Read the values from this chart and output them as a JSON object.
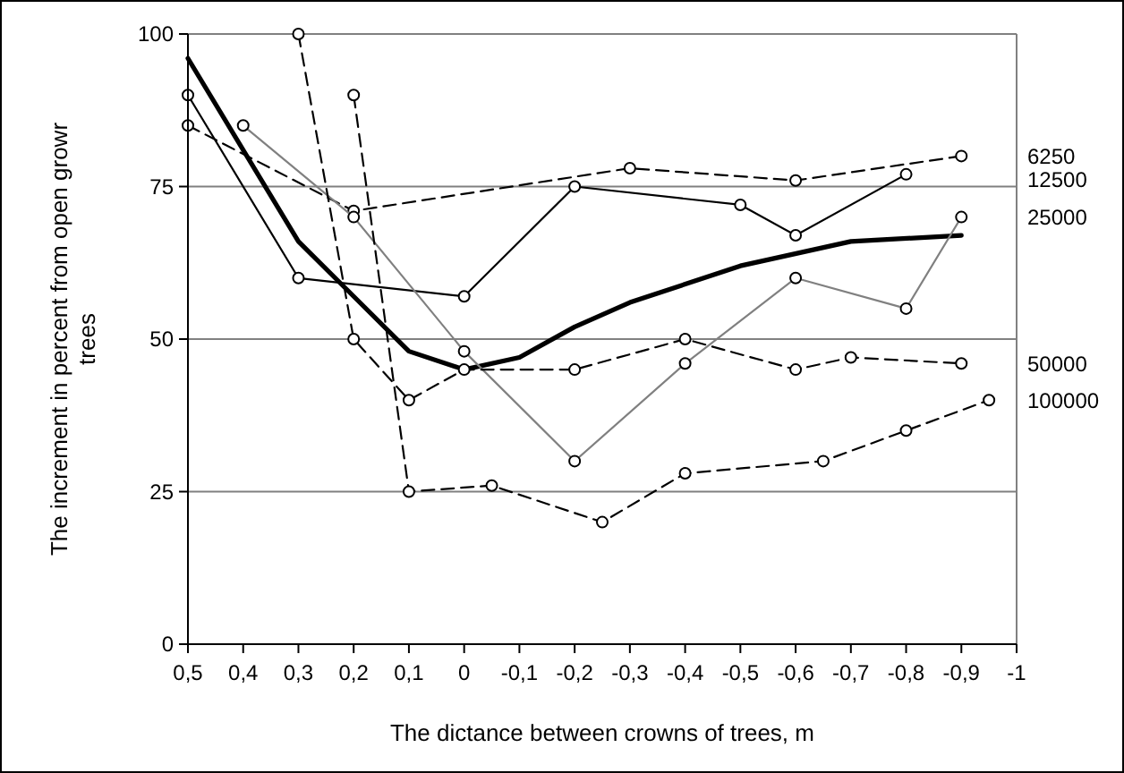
{
  "chart_data": {
    "type": "line",
    "xlabel": "The dictance between crowns of trees, m",
    "ylabel": "The increment in percent from open growr trees",
    "xlim": [
      0.5,
      -1
    ],
    "ylim": [
      0,
      100
    ],
    "xticks": [
      {
        "value": 0.5,
        "label": "0,5"
      },
      {
        "value": 0.4,
        "label": "0,4"
      },
      {
        "value": 0.3,
        "label": "0,3"
      },
      {
        "value": 0.2,
        "label": "0,2"
      },
      {
        "value": 0.1,
        "label": "0,1"
      },
      0,
      {
        "value": -0.1,
        "label": "-0,1"
      },
      {
        "value": -0.2,
        "label": "-0,2"
      },
      {
        "value": -0.3,
        "label": "-0,3"
      },
      {
        "value": -0.4,
        "label": "-0,4"
      },
      {
        "value": -0.5,
        "label": "-0,5"
      },
      {
        "value": -0.6,
        "label": "-0,6"
      },
      {
        "value": -0.7,
        "label": "-0,7"
      },
      {
        "value": -0.8,
        "label": "-0,8"
      },
      {
        "value": -0.9,
        "label": "-0,9"
      },
      -1
    ],
    "yticks": [
      0,
      25,
      50,
      75,
      100
    ],
    "grid": "y",
    "series": [
      {
        "name": "6250",
        "color": "#000000",
        "line_style": "dashed",
        "marker": "circle",
        "x": [
          0.5,
          0.2,
          -0.3,
          -0.6,
          -0.9
        ],
        "values": [
          85,
          71,
          78,
          76,
          80
        ]
      },
      {
        "name": "12500",
        "color": "#000000",
        "line_style": "solid",
        "marker": "circle",
        "x": [
          0.5,
          0.3,
          0,
          -0.2,
          -0.5,
          -0.6,
          -0.8
        ],
        "values": [
          90,
          60,
          57,
          75,
          72,
          67,
          77
        ]
      },
      {
        "color": "#000000",
        "line_style": "solid",
        "marker": "none",
        "x": [
          0.5,
          0.3,
          0.2,
          0.1,
          0,
          -0.1,
          -0.2,
          -0.3,
          -0.5,
          -0.7,
          -0.9
        ],
        "values": [
          96,
          66,
          57,
          48,
          45,
          47,
          52,
          56,
          62,
          66,
          67
        ]
      },
      {
        "name": "25000",
        "color": "#808080",
        "line_style": "solid",
        "marker": "circle",
        "x": [
          0.4,
          0.2,
          0,
          -0.2,
          -0.4,
          -0.6,
          -0.8,
          -0.9
        ],
        "values": [
          85,
          70,
          48,
          30,
          46,
          60,
          55,
          70
        ]
      },
      {
        "name": "50000",
        "color": "#000000",
        "line_style": "dashed",
        "marker": "circle",
        "x": [
          0.3,
          0.2,
          0.1,
          0,
          -0.2,
          -0.4,
          -0.6,
          -0.7,
          -0.9
        ],
        "values": [
          100,
          50,
          40,
          45,
          45,
          50,
          45,
          47,
          46
        ]
      },
      {
        "name": "100000",
        "color": "#000000",
        "line_style": "dashed",
        "marker": "circle",
        "x": [
          0.2,
          0.1,
          -0.05,
          -0.25,
          -0.4,
          -0.65,
          -0.8,
          -0.95
        ],
        "values": [
          90,
          25,
          26,
          20,
          28,
          30,
          35,
          40
        ]
      }
    ]
  }
}
